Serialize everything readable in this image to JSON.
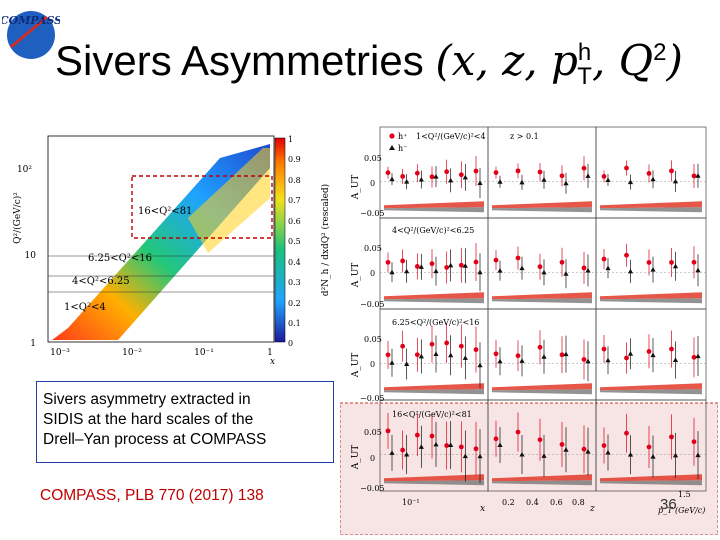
{
  "logo": {
    "text": "COMPASS"
  },
  "title": {
    "text": "Sivers Asymmetries ",
    "vars": "(x, z, p",
    "sup": "h",
    "sub": "T",
    "tail": ", Q",
    "sq": "2",
    "close": ")"
  },
  "heatmap": {
    "ylabel": "Q²/(GeV/c)²",
    "xlabel": "x",
    "zlabel": "d²N_h / dxdQ² (rescaled)",
    "y_ticks": [
      "10²",
      "10",
      "1"
    ],
    "x_ticks": [
      "10⁻³",
      "10⁻²",
      "10⁻¹",
      "1"
    ],
    "z_ticks": [
      "1",
      "0.9",
      "0.8",
      "0.7",
      "0.6",
      "0.5",
      "0.4",
      "0.3",
      "0.2",
      "0.1",
      "0"
    ],
    "regions": [
      "16<Q²<81",
      "6.25<Q²<16",
      "4<Q²<6.25",
      "1<Q²<4"
    ]
  },
  "asym": {
    "legend": {
      "hplus": "h⁺",
      "hminus": "h⁻",
      "range1": "1<Q²/(GeV/c)²<4",
      "zcut": "z > 0.1"
    },
    "row_labels": [
      "4<Q²/(GeV/c)²<6.25",
      "6.25<Q²/(GeV/c)²<16",
      "16<Q²/(GeV/c)²<81"
    ],
    "y_label": "A_UT",
    "y_ticks": [
      "0.05",
      "0",
      "−0.05"
    ],
    "x_ticks_1": [
      "10⁻¹"
    ],
    "x_ticks_2": [
      "0.2",
      "0.4",
      "0.6",
      "0.8"
    ],
    "x_ticks_3": [
      "1.5"
    ],
    "x_name_1": "x",
    "x_name_2": "z",
    "x_name_3": "p_T (GeV/c)",
    "colors": {
      "hplus": "#e0001a",
      "hminus": "#111111",
      "bandRed": "#e23a2a",
      "bandGray": "#777777",
      "highlight": "#f7e4e4",
      "highlightBorder": "#c0392b"
    }
  },
  "blurb": {
    "line1": "Sivers asymmetry extracted in",
    "line2": "SIDIS at the hard scales of the",
    "line3": "Drell–Yan process at COMPASS"
  },
  "reference": "COMPASS, PLB 770 (2017) 138",
  "page_number": "36"
}
